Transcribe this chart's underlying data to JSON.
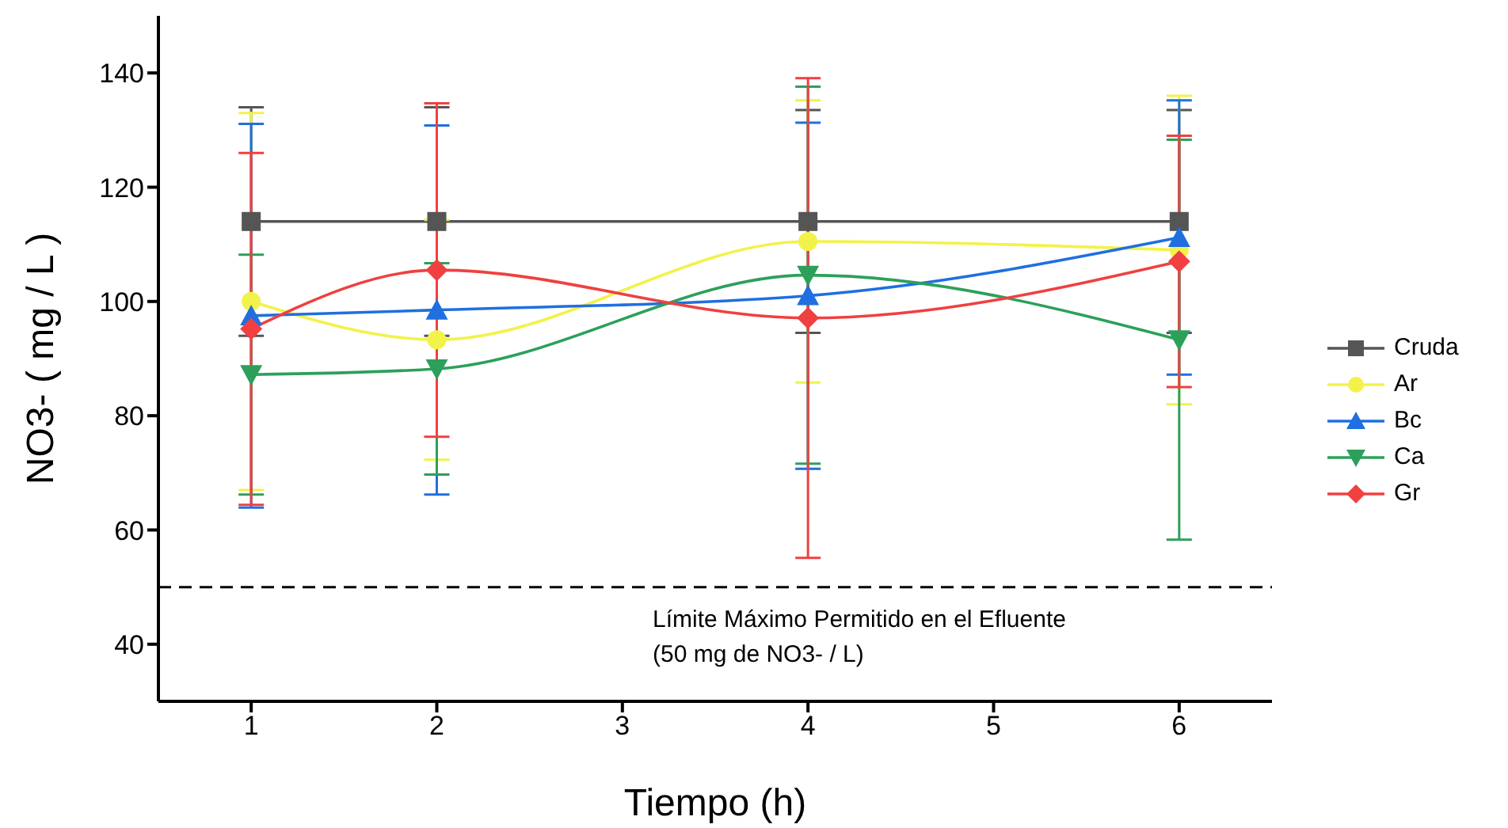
{
  "chart_data": {
    "type": "line",
    "xlabel": "Tiempo (h)",
    "ylabel": "NO3- ( mg / L )",
    "x": [
      1,
      2,
      4,
      6
    ],
    "xlim": [
      0.5,
      6.5
    ],
    "xticks": [
      1,
      2,
      3,
      4,
      5,
      6
    ],
    "ylim": [
      30,
      150
    ],
    "yticks": [
      40,
      60,
      80,
      100,
      120,
      140
    ],
    "legend": "right",
    "series": [
      {
        "name": "Cruda",
        "color": "#555555",
        "marker": "square",
        "values": [
          114,
          114,
          114,
          114
        ],
        "errors": [
          20,
          20,
          19.5,
          19.5
        ]
      },
      {
        "name": "Ar",
        "color": "#f2f24a",
        "marker": "circle",
        "values": [
          100,
          93.3,
          110.5,
          109
        ],
        "errors": [
          33,
          21,
          24.7,
          27
        ]
      },
      {
        "name": "Bc",
        "color": "#1f6fe0",
        "marker": "triangle",
        "values": [
          97.5,
          98.5,
          101,
          111.2
        ],
        "errors": [
          33.6,
          32.3,
          30.3,
          24
        ]
      },
      {
        "name": "Ca",
        "color": "#2ca05a",
        "marker": "triangle-down",
        "values": [
          87.2,
          88.2,
          104.6,
          93.3
        ],
        "errors": [
          21,
          18.5,
          33,
          35
        ]
      },
      {
        "name": "Gr",
        "color": "#f04040",
        "marker": "diamond",
        "values": [
          95.2,
          105.5,
          97.1,
          107
        ],
        "errors": [
          30.8,
          29.2,
          42,
          22
        ]
      }
    ],
    "ref_lines": [
      {
        "axis": "y",
        "value": 50,
        "label": "Límite Máximo Permitido en el Efluente\n(50 mg de NO3- / L)",
        "color": "#000000",
        "line_style": "dashed"
      }
    ]
  }
}
